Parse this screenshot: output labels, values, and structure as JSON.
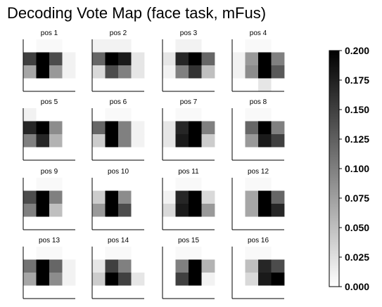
{
  "title": "Decoding Vote Map (face task, mFus)",
  "chart_data": {
    "type": "heatmap",
    "title": "Decoding Vote Map (face task, mFus)",
    "colormap": "gray_r",
    "grid": false,
    "colorbar": {
      "position": "right",
      "vmin": 0.0,
      "vmax": 0.2,
      "ticks": [
        "0.000",
        "0.025",
        "0.050",
        "0.075",
        "0.100",
        "0.125",
        "0.150",
        "0.175",
        "0.200"
      ]
    },
    "panels": [
      {
        "label": "pos 1",
        "matrix": [
          [
            0.0,
            0.005,
            0.005,
            0.0
          ],
          [
            0.15,
            0.2,
            0.14,
            0.01
          ],
          [
            0.07,
            0.2,
            0.08,
            0.01
          ],
          [
            0.0,
            0.0,
            0.0,
            0.0
          ]
        ]
      },
      {
        "label": "pos 2",
        "matrix": [
          [
            0.01,
            0.01,
            0.01,
            0.0
          ],
          [
            0.12,
            0.2,
            0.18,
            0.02
          ],
          [
            0.03,
            0.14,
            0.1,
            0.02
          ],
          [
            0.0,
            0.0,
            0.0,
            0.0
          ]
        ]
      },
      {
        "label": "pos 3",
        "matrix": [
          [
            0.0,
            0.01,
            0.01,
            0.0
          ],
          [
            0.02,
            0.17,
            0.2,
            0.12
          ],
          [
            0.01,
            0.1,
            0.16,
            0.05
          ],
          [
            0.0,
            0.0,
            0.0,
            0.0
          ]
        ]
      },
      {
        "label": "pos 4",
        "matrix": [
          [
            0.0,
            0.005,
            0.005,
            0.0
          ],
          [
            0.01,
            0.08,
            0.2,
            0.1
          ],
          [
            0.01,
            0.09,
            0.2,
            0.13
          ],
          [
            0.0,
            0.0,
            0.02,
            0.0
          ]
        ]
      },
      {
        "label": "pos 5",
        "matrix": [
          [
            0.01,
            0.0,
            0.0,
            0.0
          ],
          [
            0.17,
            0.2,
            0.09,
            0.0
          ],
          [
            0.1,
            0.17,
            0.06,
            0.0
          ],
          [
            0.0,
            0.0,
            0.0,
            0.0
          ]
        ]
      },
      {
        "label": "pos 6",
        "matrix": [
          [
            0.0,
            0.005,
            0.005,
            0.0
          ],
          [
            0.12,
            0.2,
            0.1,
            0.01
          ],
          [
            0.04,
            0.2,
            0.1,
            0.01
          ],
          [
            0.0,
            0.0,
            0.0,
            0.0
          ]
        ]
      },
      {
        "label": "pos 7",
        "matrix": [
          [
            0.0,
            0.005,
            0.005,
            0.0
          ],
          [
            0.02,
            0.17,
            0.2,
            0.1
          ],
          [
            0.02,
            0.18,
            0.2,
            0.04
          ],
          [
            0.0,
            0.0,
            0.0,
            0.0
          ]
        ]
      },
      {
        "label": "pos 8",
        "matrix": [
          [
            0.0,
            0.005,
            0.005,
            0.0
          ],
          [
            0.0,
            0.12,
            0.2,
            0.1
          ],
          [
            0.0,
            0.08,
            0.18,
            0.15
          ],
          [
            0.0,
            0.0,
            0.0,
            0.0
          ]
        ]
      },
      {
        "label": "pos 9",
        "matrix": [
          [
            0.0,
            0.005,
            0.005,
            0.0
          ],
          [
            0.14,
            0.2,
            0.1,
            0.0
          ],
          [
            0.1,
            0.2,
            0.05,
            0.0
          ],
          [
            0.0,
            0.0,
            0.0,
            0.0
          ]
        ]
      },
      {
        "label": "pos 10",
        "matrix": [
          [
            0.0,
            0.0,
            0.0,
            0.0
          ],
          [
            0.04,
            0.2,
            0.09,
            0.0
          ],
          [
            0.08,
            0.2,
            0.14,
            0.0
          ],
          [
            0.0,
            0.0,
            0.0,
            0.0
          ]
        ]
      },
      {
        "label": "pos 11",
        "matrix": [
          [
            0.0,
            0.005,
            0.005,
            0.0
          ],
          [
            0.01,
            0.17,
            0.2,
            0.03
          ],
          [
            0.03,
            0.18,
            0.2,
            0.08
          ],
          [
            0.0,
            0.0,
            0.0,
            0.0
          ]
        ]
      },
      {
        "label": "pos 12",
        "matrix": [
          [
            0.0,
            0.005,
            0.005,
            0.0
          ],
          [
            0.0,
            0.07,
            0.2,
            0.12
          ],
          [
            0.0,
            0.07,
            0.2,
            0.17
          ],
          [
            0.0,
            0.0,
            0.0,
            0.0
          ]
        ]
      },
      {
        "label": "pos 13",
        "matrix": [
          [
            0.0,
            0.005,
            0.005,
            0.0
          ],
          [
            0.11,
            0.2,
            0.12,
            0.01
          ],
          [
            0.07,
            0.2,
            0.09,
            0.01
          ],
          [
            0.0,
            0.0,
            0.0,
            0.0
          ]
        ]
      },
      {
        "label": "pos 14",
        "matrix": [
          [
            0.0,
            0.005,
            0.005,
            0.0
          ],
          [
            0.02,
            0.15,
            0.1,
            0.0
          ],
          [
            0.04,
            0.2,
            0.15,
            0.02
          ],
          [
            0.0,
            0.0,
            0.0,
            0.0
          ]
        ]
      },
      {
        "label": "pos 15",
        "matrix": [
          [
            0.0,
            0.005,
            0.005,
            0.0
          ],
          [
            0.0,
            0.1,
            0.2,
            0.06
          ],
          [
            0.0,
            0.15,
            0.2,
            0.01
          ],
          [
            0.0,
            0.0,
            0.0,
            0.0
          ]
        ]
      },
      {
        "label": "pos 16",
        "matrix": [
          [
            0.0,
            0.005,
            0.005,
            0.0
          ],
          [
            0.0,
            0.05,
            0.17,
            0.14
          ],
          [
            0.0,
            0.03,
            0.18,
            0.2
          ],
          [
            0.0,
            0.0,
            0.0,
            0.0
          ]
        ]
      }
    ]
  }
}
